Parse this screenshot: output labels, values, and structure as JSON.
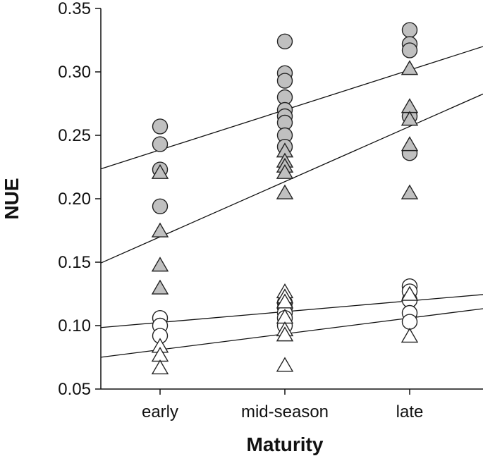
{
  "chart_data": {
    "type": "scatter",
    "title": "",
    "xlabel": "Maturity",
    "ylabel": "NUE",
    "categories": [
      "early",
      "mid-season",
      "late"
    ],
    "ylim": [
      0.05,
      0.35
    ],
    "yticks": [
      "0.05",
      "0.10",
      "0.15",
      "0.20",
      "0.25",
      "0.30",
      "0.35"
    ],
    "grid": false,
    "legend": "none",
    "colors": {
      "filled": "#c0c0c0",
      "open": "#ffffff",
      "stroke": "#222222",
      "line": "#111111"
    },
    "series": [
      {
        "marker": "circle",
        "fill": "filled",
        "points": [
          [
            "early",
            0.257
          ],
          [
            "early",
            0.243
          ],
          [
            "early",
            0.223
          ],
          [
            "early",
            0.194
          ],
          [
            "mid-season",
            0.324
          ],
          [
            "mid-season",
            0.299
          ],
          [
            "mid-season",
            0.293
          ],
          [
            "mid-season",
            0.28
          ],
          [
            "mid-season",
            0.27
          ],
          [
            "mid-season",
            0.265
          ],
          [
            "mid-season",
            0.26
          ],
          [
            "mid-season",
            0.25
          ],
          [
            "mid-season",
            0.241
          ],
          [
            "late",
            0.333
          ],
          [
            "late",
            0.322
          ],
          [
            "late",
            0.317
          ],
          [
            "late",
            0.265
          ],
          [
            "late",
            0.236
          ]
        ],
        "fit": [
          0.2385,
          0.3015
        ]
      },
      {
        "marker": "triangle",
        "fill": "filled",
        "points": [
          [
            "early",
            0.22
          ],
          [
            "early",
            0.174
          ],
          [
            "early",
            0.147
          ],
          [
            "early",
            0.129
          ],
          [
            "mid-season",
            0.237
          ],
          [
            "mid-season",
            0.229
          ],
          [
            "mid-season",
            0.225
          ],
          [
            "mid-season",
            0.22
          ],
          [
            "mid-season",
            0.204
          ],
          [
            "late",
            0.302
          ],
          [
            "late",
            0.272
          ],
          [
            "late",
            0.262
          ],
          [
            "late",
            0.242
          ],
          [
            "late",
            0.204
          ]
        ],
        "fit": [
          0.17,
          0.257
        ]
      },
      {
        "marker": "circle",
        "fill": "open",
        "points": [
          [
            "early",
            0.106
          ],
          [
            "early",
            0.1
          ],
          [
            "early",
            0.092
          ],
          [
            "mid-season",
            0.118
          ],
          [
            "mid-season",
            0.114
          ],
          [
            "mid-season",
            0.11
          ],
          [
            "mid-season",
            0.106
          ],
          [
            "mid-season",
            0.1
          ],
          [
            "late",
            0.131
          ],
          [
            "late",
            0.127
          ],
          [
            "late",
            0.12
          ],
          [
            "late",
            0.11
          ],
          [
            "late",
            0.103
          ]
        ],
        "fit": [
          0.1025,
          0.1195
        ]
      },
      {
        "marker": "triangle",
        "fill": "open",
        "points": [
          [
            "early",
            0.083
          ],
          [
            "early",
            0.076
          ],
          [
            "early",
            0.066
          ],
          [
            "mid-season",
            0.126
          ],
          [
            "mid-season",
            0.122
          ],
          [
            "mid-season",
            0.118
          ],
          [
            "mid-season",
            0.106
          ],
          [
            "mid-season",
            0.096
          ],
          [
            "mid-season",
            0.092
          ],
          [
            "mid-season",
            0.068
          ],
          [
            "late",
            0.124
          ],
          [
            "late",
            0.091
          ]
        ],
        "fit": [
          0.081,
          0.106
        ]
      }
    ]
  }
}
